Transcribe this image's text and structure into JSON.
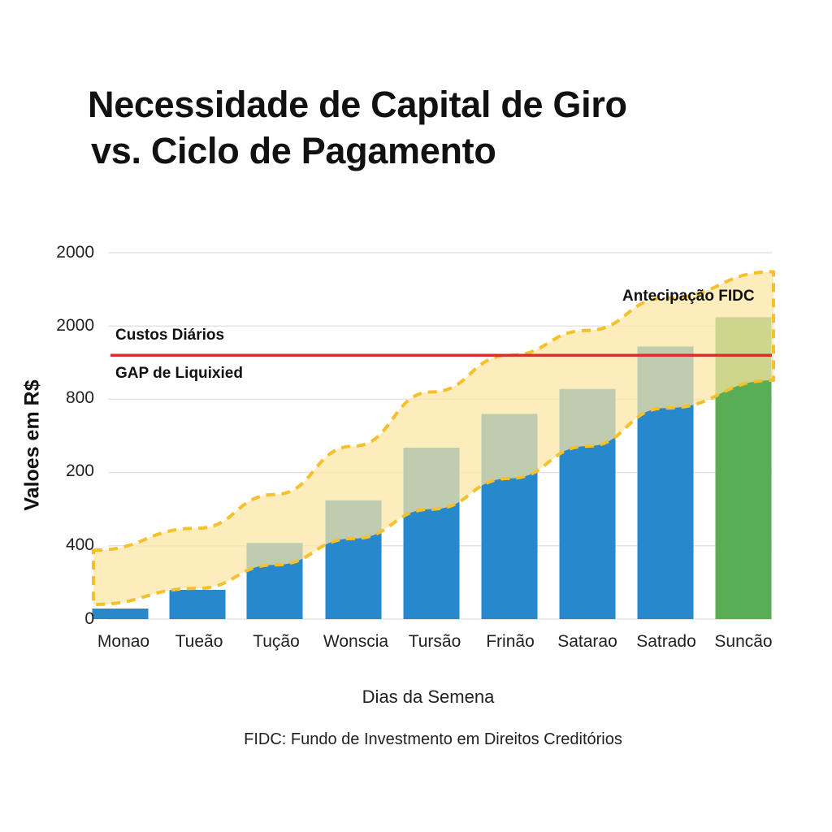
{
  "chart_data": {
    "type": "bar",
    "title": "Necessidade de Capital de Giro vs. Ciclo de Pagamento",
    "title_lines": [
      "Necessidade de Capital de Giro",
      "vs. Ciclo de Pagamento"
    ],
    "xlabel": "Dias da Semena",
    "ylabel": "Valoes em R$",
    "footnote": "FIDC: Fundo de Investmento em Direitos Creditórios",
    "y_tick_labels": [
      "0",
      "400",
      "200",
      "800",
      "2000",
      "2000"
    ],
    "y_tick_note": "Tick labels rendered as shown (non-monotonic); values estimated assuming 6 evenly spaced gridlines at 0–2500 in steps of 500",
    "ylim": [
      0,
      2500
    ],
    "grid": true,
    "categories": [
      "Monao",
      "Tueão",
      "Tução",
      "Wonscia",
      "Tursão",
      "Frinão",
      "Satarao",
      "Satrado",
      "Suncão"
    ],
    "series": [
      {
        "name": "Necessidade de Capital de Giro",
        "values": [
          72,
          200,
          520,
          810,
          1170,
          1400,
          1570,
          1860,
          2060
        ],
        "colors": [
          "#2788cc",
          "#2788cc",
          "#2788cc",
          "#2788cc",
          "#2788cc",
          "#2788cc",
          "#2788cc",
          "#2788cc",
          "#58ad55"
        ]
      }
    ],
    "reference_lines": [
      {
        "name": "Custos Diários",
        "value": 1800,
        "color": "#d9302c"
      }
    ],
    "bands": [
      {
        "name": "Antecipação FIDC",
        "fill": "#fce6a4",
        "stroke": "#f5c02c",
        "dashed": true,
        "upper": [
          470,
          620,
          850,
          1180,
          1550,
          1800,
          1970,
          2190,
          2370
        ],
        "lower": [
          100,
          210,
          370,
          550,
          750,
          960,
          1180,
          1440,
          1630
        ]
      }
    ],
    "annotations": [
      {
        "text": "Custos Diários",
        "near": "reference line (above)"
      },
      {
        "text": "GAP de Liquixied",
        "near": "reference line (below)"
      },
      {
        "text": "Antecipação FIDC",
        "near": "band top-right"
      }
    ],
    "legend_position": "none"
  },
  "labels": {
    "title_line1": "Necessidade de Capital de Giro",
    "title_line2": "vs. Ciclo de Pagamento",
    "ylabel": "Valoes em R$",
    "xlabel": "Dias da Semena",
    "footnote": "FIDC: Fundo de Investmento em Direitos Creditórios",
    "annot_costs": "Custos Diários",
    "annot_gap": "GAP de Liquixied",
    "annot_fidc": "Antecipação FIDC",
    "yticks": [
      "2000",
      "2000",
      "800",
      "200",
      "400",
      "0"
    ],
    "xticks": [
      "Monao",
      "Tueão",
      "Tução",
      "Wonscia",
      "Tursão",
      "Frinão",
      "Satarao",
      "Satrado",
      "Suncão"
    ]
  },
  "colors": {
    "bar_blue": "#2788cc",
    "bar_green": "#58ad55",
    "red_line": "#d9302c",
    "band_fill": "#fce6a4",
    "band_stroke": "#f5c02c",
    "grid": "#e4e4e4"
  }
}
